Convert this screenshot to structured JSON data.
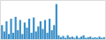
{
  "chart_data": {
    "type": "bar",
    "values": [
      22,
      12,
      28,
      8,
      32,
      10,
      35,
      14,
      30,
      8,
      26,
      18,
      32,
      10,
      34,
      12,
      20,
      28,
      16,
      30,
      10,
      32,
      14,
      22,
      55,
      6,
      3,
      5,
      2,
      6,
      3,
      4,
      2,
      5,
      2,
      4,
      6,
      2,
      3,
      4,
      2,
      3,
      2,
      4,
      2,
      3
    ],
    "color": "#3a8fc7",
    "ylim": [
      0,
      60
    ],
    "grid": false,
    "tick_labels": false
  }
}
